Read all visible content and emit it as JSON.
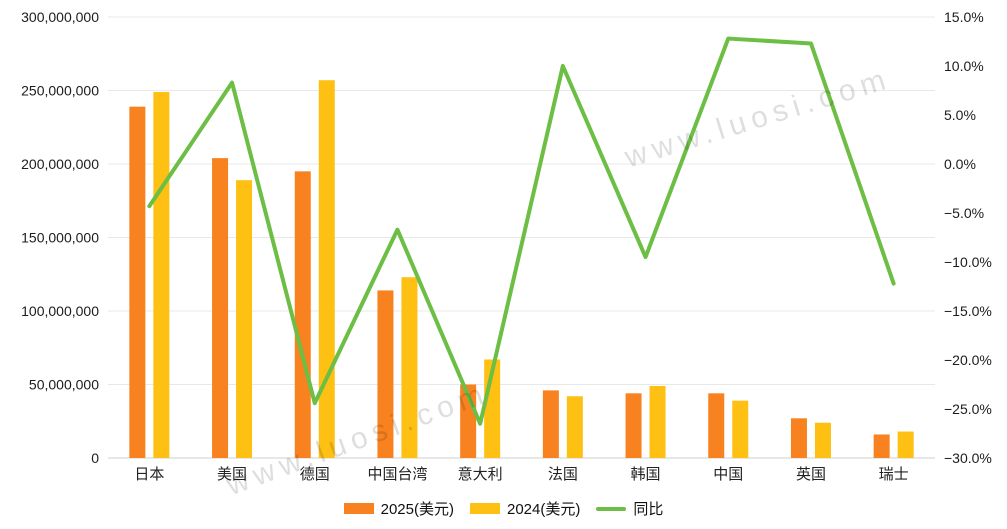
{
  "watermark": {
    "text": "www.luosi.com"
  },
  "chart_data": {
    "type": "combo-bar-line",
    "title": "",
    "categories": [
      "日本",
      "美国",
      "德国",
      "中国台湾",
      "意大利",
      "法国",
      "韩国",
      "中国",
      "英国",
      "瑞士"
    ],
    "series": [
      {
        "name": "2025(美元)",
        "type": "bar",
        "axis": "left",
        "color": "#F8821F",
        "values": [
          239000000,
          204000000,
          195000000,
          114000000,
          50000000,
          46000000,
          44000000,
          44000000,
          27000000,
          16000000
        ]
      },
      {
        "name": "2024(美元)",
        "type": "bar",
        "axis": "left",
        "color": "#FDC013",
        "values": [
          249000000,
          189000000,
          257000000,
          123000000,
          67000000,
          42000000,
          49000000,
          39000000,
          24000000,
          18000000
        ]
      },
      {
        "name": "同比",
        "type": "line",
        "axis": "right",
        "color": "#6CBE44",
        "values": [
          -4.3,
          8.3,
          -24.4,
          -6.7,
          -26.5,
          10.0,
          -9.5,
          12.8,
          12.3,
          -12.2
        ]
      }
    ],
    "left_axis": {
      "min": 0,
      "max": 300000000,
      "tick_values": [
        300000000,
        250000000,
        200000000,
        150000000,
        100000000,
        50000000,
        0
      ],
      "tick_labels": [
        "300,000,000",
        "250,000,000",
        "200,000,000",
        "150,000,000",
        "100,000,000",
        "50,000,000",
        "0"
      ]
    },
    "right_axis": {
      "min": -30,
      "max": 15,
      "tick_values": [
        15,
        10,
        5,
        0,
        -5,
        -10,
        -15,
        -20,
        -25,
        -30
      ],
      "tick_labels": [
        "15.0%",
        "10.0%",
        "5.0%",
        "0.0%",
        "−5.0%",
        "−10.0%",
        "−15.0%",
        "−20.0%",
        "−25.0%",
        "−30.0%"
      ]
    },
    "grid": true,
    "legend_position": "bottom"
  }
}
